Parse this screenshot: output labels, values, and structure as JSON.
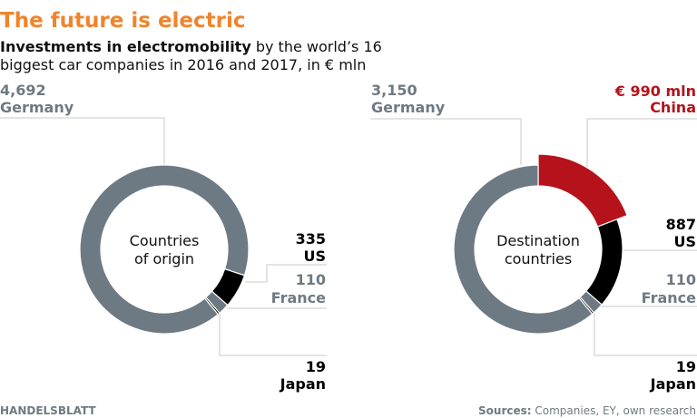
{
  "title": "The future is electric",
  "subtitle": {
    "bold": "Investments in electromobility",
    "rest_line1": " by the world’s 16",
    "line2": "biggest car companies in 2016 and 2017, in € mln"
  },
  "colors": {
    "title": "#f0842c",
    "germany": "#6e7a83",
    "us": "#000000",
    "france": "#6e7a83",
    "japan": "#000000",
    "china": "#b5121b"
  },
  "footer": {
    "brand": "HANDELSBLATT",
    "sources_label": "Sources:",
    "sources_text": " Companies, EY, own research"
  },
  "chart_data": [
    {
      "type": "pie",
      "variant": "donut",
      "center_label": [
        "Countries",
        "of origin"
      ],
      "unit": "€ mln",
      "slices": [
        {
          "label": "Germany",
          "value": 4692,
          "value_label": "4,692"
        },
        {
          "label": "US",
          "value": 335,
          "value_label": "335"
        },
        {
          "label": "France",
          "value": 110,
          "value_label": "110"
        },
        {
          "label": "Japan",
          "value": 19,
          "value_label": "19"
        }
      ]
    },
    {
      "type": "pie",
      "variant": "donut",
      "center_label": [
        "Destination",
        "countries"
      ],
      "unit": "€ mln",
      "slices": [
        {
          "label": "China",
          "value": 990,
          "value_label": "€ 990 mln",
          "highlight": true
        },
        {
          "label": "US",
          "value": 887,
          "value_label": "887"
        },
        {
          "label": "France",
          "value": 110,
          "value_label": "110"
        },
        {
          "label": "Japan",
          "value": 19,
          "value_label": "19"
        },
        {
          "label": "Germany",
          "value": 3150,
          "value_label": "3,150"
        }
      ]
    }
  ]
}
